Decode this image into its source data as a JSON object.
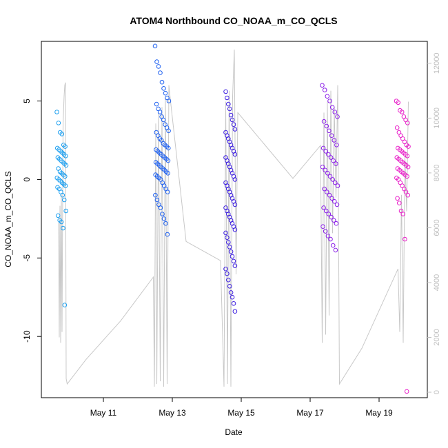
{
  "chart_data": {
    "type": "scatter",
    "title": "ATOM4 Northbound CO_NOAA_m_CO_QCLS",
    "xlabel": "Date",
    "ylabel": "CO_NOAA_m_CO_QCLS",
    "x_unit": "day of May",
    "xlim": [
      9.2,
      20.4
    ],
    "ylim": [
      -13.9,
      8.8
    ],
    "x_ticks": [
      {
        "value": 11,
        "label": "May 11"
      },
      {
        "value": 13,
        "label": "May 13"
      },
      {
        "value": 15,
        "label": "May 15"
      },
      {
        "value": 17,
        "label": "May 17"
      },
      {
        "value": 19,
        "label": "May 19"
      }
    ],
    "y_ticks": [
      {
        "value": 5,
        "label": "5"
      },
      {
        "value": 0,
        "label": "0"
      },
      {
        "value": -5,
        "label": "-5"
      },
      {
        "value": -10,
        "label": "-10"
      }
    ],
    "secondary_axis": {
      "description": "altitude trace (gray line), right axis",
      "ylim": [
        -200,
        12800
      ],
      "ticks": [
        {
          "value": 0,
          "label": "0"
        },
        {
          "value": 2000,
          "label": "2000"
        },
        {
          "value": 4000,
          "label": "4000"
        },
        {
          "value": 6000,
          "label": "6000"
        },
        {
          "value": 8000,
          "label": "8000"
        },
        {
          "value": 10000,
          "label": "10000"
        },
        {
          "value": 12000,
          "label": "12000"
        }
      ]
    },
    "grid": false,
    "legend": "none",
    "colors": {
      "flight1": "#1ea0f0",
      "flight2": "#1e60f0",
      "flight3": "#3c1ee0",
      "flight4": "#8a1ee8",
      "flight5": "#e81ec8",
      "altitude": "#c8c8c8"
    },
    "flights": [
      {
        "color_key": "flight1",
        "x_range": [
          9.65,
          9.92
        ],
        "y": [
          4.3,
          3.6,
          3.0,
          2.9,
          2.2,
          2.1,
          2.0,
          1.9,
          1.8,
          1.7,
          1.6,
          1.5,
          1.4,
          1.3,
          1.2,
          1.1,
          1.0,
          0.9,
          0.7,
          0.5,
          0.4,
          0.3,
          0.2,
          0.1,
          0.0,
          -0.1,
          -0.2,
          -0.3,
          -0.4,
          -0.5,
          -0.6,
          -0.8,
          -1.0,
          -1.3,
          -2.0,
          -2.3,
          -2.6,
          -2.7,
          -3.1,
          -8.0
        ]
      },
      {
        "color_key": "flight2",
        "x_range": [
          12.5,
          12.9
        ],
        "y": [
          8.5,
          7.5,
          7.2,
          6.8,
          6.2,
          5.8,
          5.5,
          5.2,
          5.0,
          4.8,
          4.5,
          4.3,
          4.0,
          3.8,
          3.5,
          3.3,
          3.1,
          3.0,
          2.8,
          2.6,
          2.5,
          2.3,
          2.2,
          2.1,
          2.0,
          1.9,
          1.8,
          1.7,
          1.6,
          1.5,
          1.4,
          1.3,
          1.2,
          1.1,
          1.0,
          0.9,
          0.8,
          0.7,
          0.6,
          0.5,
          0.4,
          0.3,
          0.2,
          0.1,
          0.0,
          -0.2,
          -0.4,
          -0.6,
          -0.8,
          -1.0,
          -1.3,
          -1.6,
          -1.8,
          -2.2,
          -2.5,
          -2.8,
          -3.5
        ]
      },
      {
        "color_key": "flight3",
        "x_range": [
          14.55,
          14.85
        ],
        "y": [
          5.6,
          5.2,
          4.8,
          4.5,
          4.1,
          3.8,
          3.5,
          3.2,
          3.0,
          2.8,
          2.6,
          2.4,
          2.2,
          2.0,
          1.8,
          1.6,
          1.4,
          1.2,
          1.0,
          0.8,
          0.6,
          0.4,
          0.2,
          0.0,
          -0.2,
          -0.4,
          -0.6,
          -0.8,
          -1.0,
          -1.2,
          -1.4,
          -1.6,
          -1.8,
          -2.0,
          -2.2,
          -2.4,
          -2.6,
          -2.8,
          -3.0,
          -3.2,
          -3.4,
          -3.7,
          -4.0,
          -4.3,
          -4.6,
          -4.9,
          -5.2,
          -5.5,
          -5.7,
          -6.0,
          -6.4,
          -6.8,
          -7.2,
          -7.5,
          -7.9,
          -8.4
        ]
      },
      {
        "color_key": "flight4",
        "x_range": [
          17.35,
          17.8
        ],
        "y": [
          6.0,
          5.7,
          5.3,
          5.0,
          4.6,
          4.3,
          4.0,
          3.7,
          3.4,
          3.1,
          2.8,
          2.5,
          2.2,
          2.0,
          1.8,
          1.6,
          1.4,
          1.2,
          1.0,
          0.8,
          0.6,
          0.4,
          0.2,
          0.0,
          -0.2,
          -0.4,
          -0.6,
          -0.8,
          -1.0,
          -1.2,
          -1.4,
          -1.6,
          -1.8,
          -2.0,
          -2.2,
          -2.4,
          -2.6,
          -2.8,
          -3.0,
          -3.3,
          -3.6,
          -3.8,
          -4.2,
          -4.5
        ]
      },
      {
        "color_key": "flight5",
        "x_range": [
          19.5,
          19.85
        ],
        "y": [
          5.0,
          4.9,
          4.4,
          4.3,
          4.0,
          3.8,
          3.6,
          3.3,
          3.0,
          2.8,
          2.6,
          2.4,
          2.2,
          2.1,
          2.0,
          1.9,
          1.8,
          1.7,
          1.6,
          1.5,
          1.4,
          1.3,
          1.2,
          1.1,
          1.0,
          0.9,
          0.8,
          0.7,
          0.6,
          0.5,
          0.4,
          0.3,
          0.2,
          0.1,
          0.0,
          -0.2,
          -0.4,
          -0.6,
          -0.8,
          -1.0,
          -1.2,
          -1.5,
          -2.0,
          -2.2,
          -3.8,
          -13.5
        ]
      }
    ],
    "altitude_trace": {
      "x": [
        9.7,
        9.72,
        9.74,
        9.76,
        9.78,
        9.8,
        9.83,
        9.86,
        9.88,
        9.9,
        9.92,
        9.95,
        10.5,
        11.5,
        12.45,
        12.48,
        12.52,
        12.55,
        12.6,
        12.65,
        12.7,
        12.75,
        12.8,
        12.85,
        12.9,
        12.95,
        13.4,
        14.4,
        14.5,
        14.55,
        14.6,
        14.65,
        14.7,
        14.75,
        14.8,
        14.85,
        14.9,
        16.5,
        17.3,
        17.35,
        17.4,
        17.45,
        17.5,
        17.55,
        17.6,
        17.65,
        17.7,
        17.75,
        17.8,
        17.85,
        18.5,
        19.55,
        19.6,
        19.65,
        19.7,
        19.75,
        19.8,
        19.85
      ],
      "alt": [
        6200,
        2000,
        6800,
        1800,
        7200,
        2200,
        9800,
        10800,
        11200,
        11300,
        500,
        300,
        1200,
        2600,
        4200,
        200,
        9800,
        300,
        10200,
        400,
        10400,
        200,
        10800,
        300,
        11200,
        10600,
        5500,
        4800,
        200,
        10600,
        300,
        11000,
        200,
        10800,
        12500,
        4300,
        10200,
        7800,
        9000,
        1800,
        10200,
        2100,
        10600,
        2800,
        11000,
        5800,
        10400,
        7100,
        11200,
        300,
        1600,
        4500,
        2200,
        7200,
        1800,
        8600,
        6600,
        10600
      ]
    }
  }
}
